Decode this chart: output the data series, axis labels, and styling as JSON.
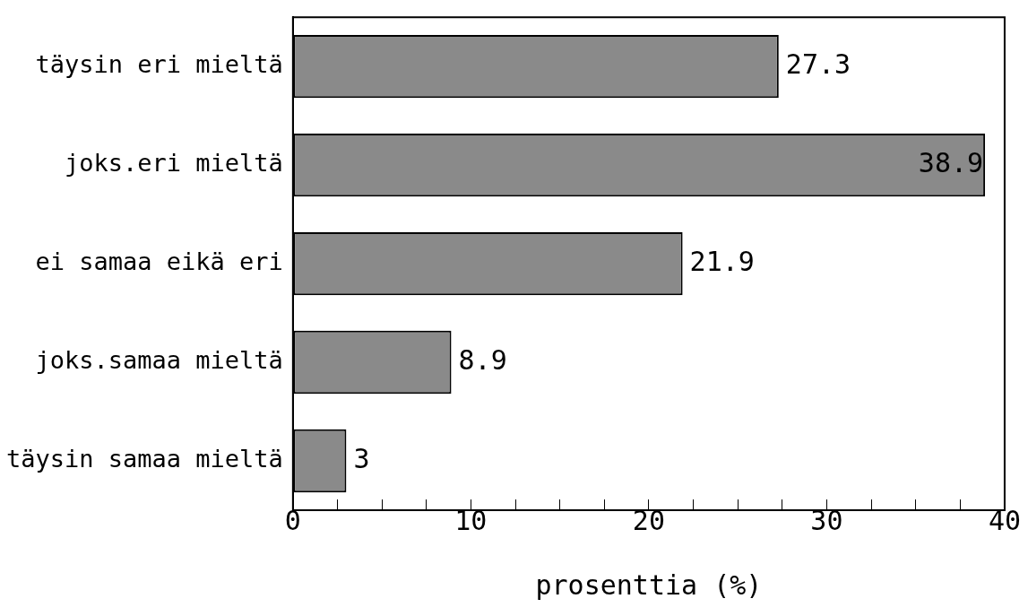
{
  "chart_data": {
    "type": "bar",
    "orientation": "horizontal",
    "xlabel": "prosenttia (%)",
    "categories": [
      "täysin eri mieltä",
      "joks.eri mieltä",
      "ei samaa eikä eri",
      "joks.samaa mieltä",
      "täysin samaa mieltä"
    ],
    "values": [
      27.3,
      38.9,
      21.9,
      8.9,
      3
    ],
    "color": "#8a8a8a",
    "data_labels": true,
    "grid": false,
    "legend": false,
    "xlim": [
      0,
      40
    ],
    "xticks": [
      0,
      {
        "value": 2.5,
        "label": null
      },
      {
        "value": 5,
        "label": null
      },
      {
        "value": 7.5,
        "label": null
      },
      10,
      {
        "value": 12.5,
        "label": null
      },
      {
        "value": 15,
        "label": null
      },
      {
        "value": 17.5,
        "label": null
      },
      20,
      {
        "value": 22.5,
        "label": null
      },
      {
        "value": 25,
        "label": null
      },
      {
        "value": 27.5,
        "label": null
      },
      30,
      {
        "value": 32.5,
        "label": null
      },
      {
        "value": 35,
        "label": null
      },
      {
        "value": 37.5,
        "label": null
      },
      40
    ]
  }
}
